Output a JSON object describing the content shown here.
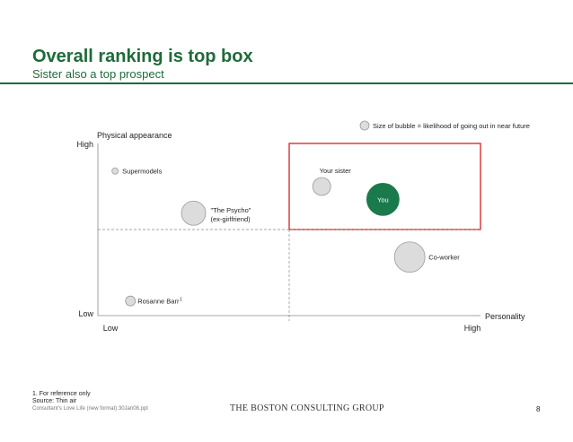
{
  "header": {
    "title": "Overall ranking is top box",
    "subtitle": "Sister also a top prospect"
  },
  "colors": {
    "accent_green": "#1f6b3a",
    "you_bubble": "#1a7a4c",
    "highlight_box": "#d42020",
    "bubble_fill": "#dcdcdc",
    "bubble_stroke": "#9a9a9a"
  },
  "chart_data": {
    "type": "scatter",
    "variant": "bubble",
    "title": "",
    "ylabel": "Physical appearance",
    "xlabel": "Personality",
    "xlim": [
      0,
      10
    ],
    "ylim": [
      0,
      10
    ],
    "x_ticks": [
      "Low",
      "High"
    ],
    "y_ticks": [
      "Low",
      "High"
    ],
    "reference_lines": {
      "x": 5,
      "y": 5
    },
    "highlight_region": {
      "x": [
        5,
        10
      ],
      "y": [
        5,
        10
      ]
    },
    "legend": {
      "label": "Size of bubble = likelihood of going out in near future",
      "position": "top-right"
    },
    "points": [
      {
        "name": "Supermodels",
        "label_lines": [
          "Supermodels"
        ],
        "x": 0.45,
        "y": 8.4,
        "size": 0.35
      },
      {
        "name": "The Psycho",
        "label_lines": [
          "\"The Psycho\"",
          "(ex-girlfriend)"
        ],
        "x": 2.5,
        "y": 5.95,
        "size": 1.35
      },
      {
        "name": "Your sister",
        "label_lines": [
          "Your sister"
        ],
        "x": 5.85,
        "y": 7.5,
        "size": 1.0
      },
      {
        "name": "You",
        "label_lines": [
          "You"
        ],
        "x": 7.45,
        "y": 6.75,
        "size": 1.8,
        "highlight": true
      },
      {
        "name": "Co-worker",
        "label_lines": [
          "Co-worker"
        ],
        "x": 8.15,
        "y": 3.4,
        "size": 1.7
      },
      {
        "name": "Rosanne Barr",
        "label_lines": [
          "Rosanne Barr"
        ],
        "label_sup": "1",
        "x": 0.85,
        "y": 0.85,
        "size": 0.55
      }
    ]
  },
  "footnotes": {
    "note": "1. For reference only",
    "source": "Source: Thin air"
  },
  "footer": {
    "file": "Consultant's Love Life (new format) 30Jan08.ppt",
    "logo": "THE BOSTON CONSULTING GROUP",
    "page": "8"
  }
}
